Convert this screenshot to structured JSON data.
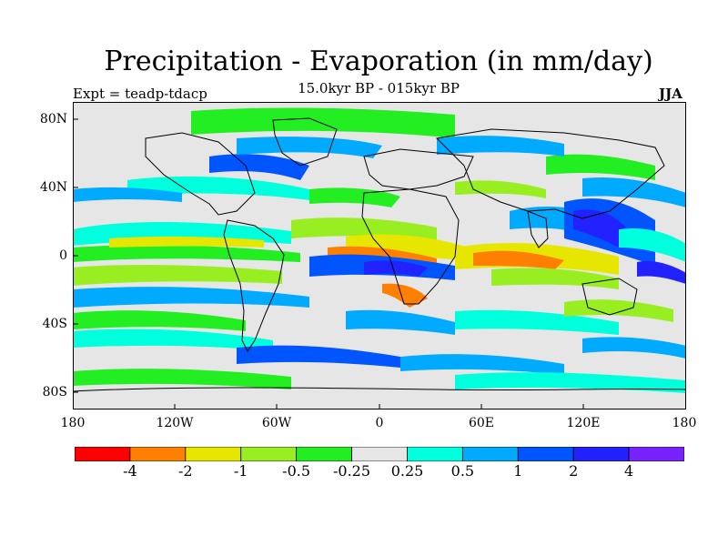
{
  "title": "Precipitation - Evaporation (in mm/day)",
  "subtitle": "15.0kyr BP - 015kyr BP",
  "left_label": "Expt = teadp-tdacp",
  "right_label": "JJA",
  "y_ticks": [
    "80N",
    "40N",
    "0",
    "40S",
    "80S"
  ],
  "x_ticks": [
    "180",
    "120W",
    "60W",
    "0",
    "60E",
    "120E",
    "180"
  ],
  "colorbar": {
    "labels": [
      "-4",
      "-2",
      "-1",
      "-0.5",
      "-0.25",
      "0.25",
      "0.5",
      "1",
      "2",
      "4"
    ],
    "colors": [
      "#ff0000",
      "#ff8000",
      "#e6e600",
      "#99ee22",
      "#22ee22",
      "#e6e6e6",
      "#00ffdd",
      "#00aaff",
      "#0055ff",
      "#2222ff",
      "#7722ff"
    ]
  },
  "colors": {
    "background_land_ocean": "#e6e6e6",
    "coastline": "#000000"
  }
}
